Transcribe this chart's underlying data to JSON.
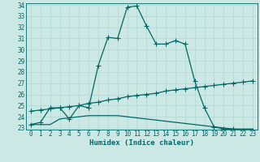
{
  "xlabel": "Humidex (Indice chaleur)",
  "bg_color": "#cce8e4",
  "line_color": "#006666",
  "grid_color": "#b0d8d4",
  "ylim": [
    23,
    34
  ],
  "xlim": [
    -0.5,
    23.5
  ],
  "yticks": [
    23,
    24,
    25,
    26,
    27,
    28,
    29,
    30,
    31,
    32,
    33,
    34
  ],
  "xticks": [
    0,
    1,
    2,
    3,
    4,
    5,
    6,
    7,
    8,
    9,
    10,
    11,
    12,
    13,
    14,
    15,
    16,
    17,
    18,
    19,
    20,
    21,
    22,
    23
  ],
  "curve1_x": [
    0,
    1,
    2,
    3,
    4,
    5,
    6,
    7,
    8,
    9,
    10,
    11,
    12,
    13,
    14,
    15,
    16,
    17,
    18,
    19,
    20,
    21,
    22,
    23
  ],
  "curve1_y": [
    23.3,
    23.5,
    24.8,
    24.8,
    23.8,
    25.0,
    24.8,
    28.6,
    31.1,
    31.0,
    33.8,
    33.9,
    32.1,
    30.5,
    30.5,
    30.8,
    30.5,
    27.2,
    24.8,
    23.1,
    22.9,
    22.9,
    22.8,
    22.8
  ],
  "curve2_x": [
    0,
    1,
    2,
    3,
    4,
    5,
    6,
    7,
    8,
    9,
    10,
    11,
    12,
    13,
    14,
    15,
    16,
    17,
    18,
    19,
    20,
    21,
    22,
    23
  ],
  "curve2_y": [
    24.5,
    24.6,
    24.7,
    24.8,
    24.9,
    25.0,
    25.2,
    25.3,
    25.5,
    25.6,
    25.8,
    25.9,
    26.0,
    26.1,
    26.3,
    26.4,
    26.5,
    26.6,
    26.7,
    26.8,
    26.9,
    27.0,
    27.1,
    27.2
  ],
  "curve3_x": [
    0,
    1,
    2,
    3,
    4,
    5,
    6,
    7,
    8,
    9,
    10,
    11,
    12,
    13,
    14,
    15,
    16,
    17,
    18,
    19,
    20,
    21,
    22,
    23
  ],
  "curve3_y": [
    23.3,
    23.3,
    23.3,
    23.8,
    23.9,
    24.0,
    24.1,
    24.1,
    24.1,
    24.1,
    24.0,
    23.9,
    23.8,
    23.7,
    23.6,
    23.5,
    23.4,
    23.3,
    23.2,
    23.1,
    23.0,
    22.9,
    22.9,
    22.9
  ],
  "marker": "+",
  "markersize": 4.0,
  "linewidth": 0.9,
  "tick_fontsize": 5.5,
  "xlabel_fontsize": 6.5
}
